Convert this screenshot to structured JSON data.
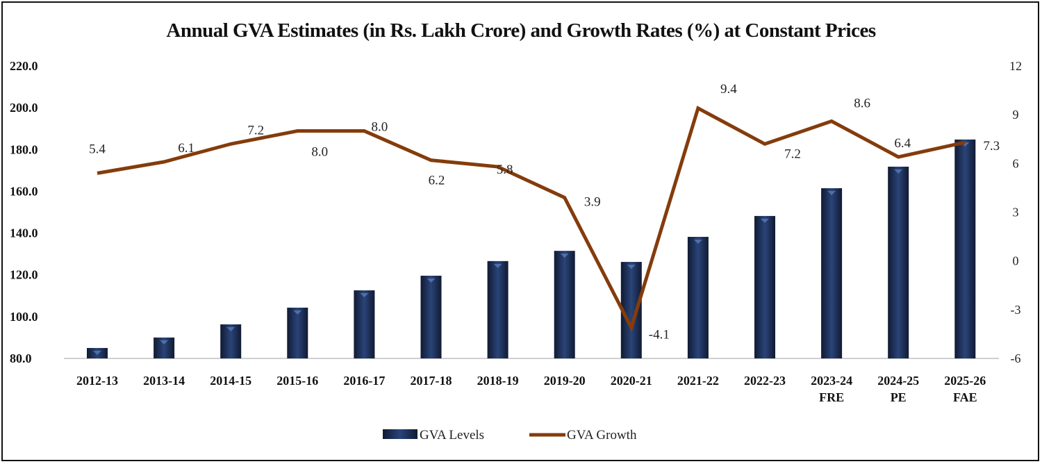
{
  "chart_data": {
    "type": "bar+line",
    "title": "Annual GVA Estimates (in Rs. Lakh Crore) and Growth Rates (%) at Constant Prices",
    "categories": [
      [
        "2012-13"
      ],
      [
        "2013-14"
      ],
      [
        "2014-15"
      ],
      [
        "2015-16"
      ],
      [
        "2016-17"
      ],
      [
        "2017-18"
      ],
      [
        "2018-19"
      ],
      [
        "2019-20"
      ],
      [
        "2020-21"
      ],
      [
        "2021-22"
      ],
      [
        "2022-23"
      ],
      [
        "2023-24",
        "FRE"
      ],
      [
        "2024-25",
        "PE"
      ],
      [
        "2025-26",
        "FAE"
      ]
    ],
    "series": [
      {
        "name": "GVA Levels",
        "type": "bar",
        "axis": "left",
        "color": "#1f3864",
        "values": [
          85.0,
          90.0,
          96.3,
          104.3,
          112.6,
          119.6,
          126.6,
          131.5,
          126.2,
          138.2,
          148.2,
          161.5,
          171.8,
          184.8
        ]
      },
      {
        "name": "GVA Growth",
        "type": "line",
        "axis": "right",
        "color": "#843c0c",
        "values": [
          5.4,
          6.1,
          7.2,
          8.0,
          8.0,
          6.2,
          5.8,
          3.9,
          -4.1,
          9.4,
          7.2,
          8.6,
          6.4,
          7.3
        ],
        "data_labels": [
          "5.4",
          "6.1",
          "7.2",
          "8.0",
          "8.0",
          "6.2",
          "5.8",
          "3.9",
          "-4.1",
          "9.4",
          "7.2",
          "8.6",
          "6.4",
          "7.3"
        ]
      }
    ],
    "y_left": {
      "min": 80,
      "max": 220,
      "ticks": [
        "80.0",
        "100.0",
        "120.0",
        "140.0",
        "160.0",
        "180.0",
        "200.0",
        "220.0"
      ]
    },
    "y_right": {
      "min": -6,
      "max": 12,
      "ticks": [
        "-6",
        "-3",
        "0",
        "3",
        "6",
        "9",
        "12"
      ]
    },
    "grid": false,
    "legend": "bottom"
  }
}
